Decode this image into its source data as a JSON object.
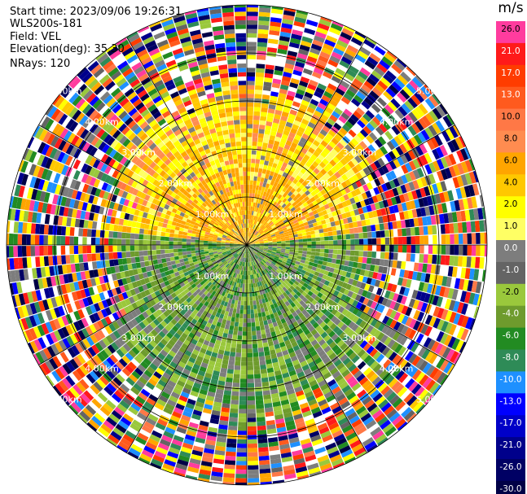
{
  "info": {
    "start_time": "Start time: 2023/09/06 19:26:31",
    "instrument": "WLS200s-181",
    "field": "Field: VEL",
    "elevation": "Elevation(deg): 35.30",
    "nrays": "NRays: 120"
  },
  "colorbar": {
    "unit": "m/s",
    "ticks": [
      "26.0",
      "21.0",
      "17.0",
      "13.0",
      "10.0",
      "8.0",
      "6.0",
      "4.0",
      "2.0",
      "1.0",
      "0.0",
      "-1.0",
      "-2.0",
      "-4.0",
      "-6.0",
      "-8.0",
      "-10.0",
      "-13.0",
      "-17.0",
      "-21.0",
      "-26.0",
      "-30.0"
    ],
    "colors": [
      "#ff3c9e",
      "#ff1a1a",
      "#ff3c00",
      "#ff5a1e",
      "#ff7846",
      "#ff8c50",
      "#ffa500",
      "#ffc800",
      "#ffff00",
      "#ffff64",
      "#7d7d7d",
      "#646464",
      "#9ac83c",
      "#6e9b2d",
      "#228b22",
      "#2e8b57",
      "#1e90ff",
      "#0000ff",
      "#0000c8",
      "#00008b",
      "#000064",
      "#000046"
    ]
  },
  "chart_data": {
    "type": "heatmap",
    "title": "",
    "field": "VEL",
    "unit": "m/s",
    "projection": "polar (PPI)",
    "nrays": 120,
    "range_rings_km": [
      1.0,
      2.0,
      3.0,
      4.0,
      5.0
    ],
    "ring_labels": [
      "1.00km",
      "2.00km",
      "3.00km",
      "4.00km",
      "5.00km"
    ],
    "spokes_deg": [
      0,
      30,
      60,
      90,
      120,
      150,
      180,
      210,
      240,
      270,
      300,
      330
    ],
    "max_range_km": 5.0,
    "description_values": {
      "north_sector_inner_velocity_ms": [
        2.0,
        6.0
      ],
      "south_sector_inner_velocity_ms": [
        -6.0,
        -2.0
      ],
      "outer_region": "noise"
    }
  }
}
